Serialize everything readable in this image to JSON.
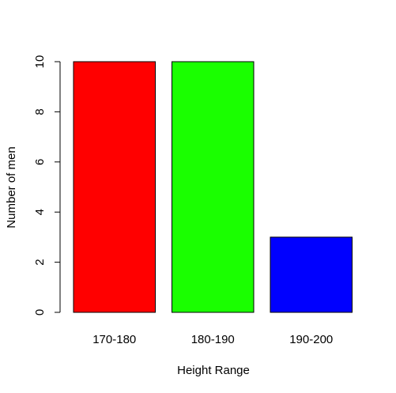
{
  "chart_data": {
    "type": "bar",
    "title": "",
    "xlabel": "Height Range",
    "ylabel": "Number of men",
    "categories": [
      "170-180",
      "180-190",
      "190-200"
    ],
    "values": [
      10,
      10,
      3
    ],
    "colors": [
      "#FF0000",
      "#1AFF00",
      "#0000FF"
    ],
    "ylim": [
      0,
      10
    ],
    "yticks": [
      0,
      2,
      4,
      6,
      8,
      10
    ],
    "grid": false,
    "legend": "none"
  }
}
